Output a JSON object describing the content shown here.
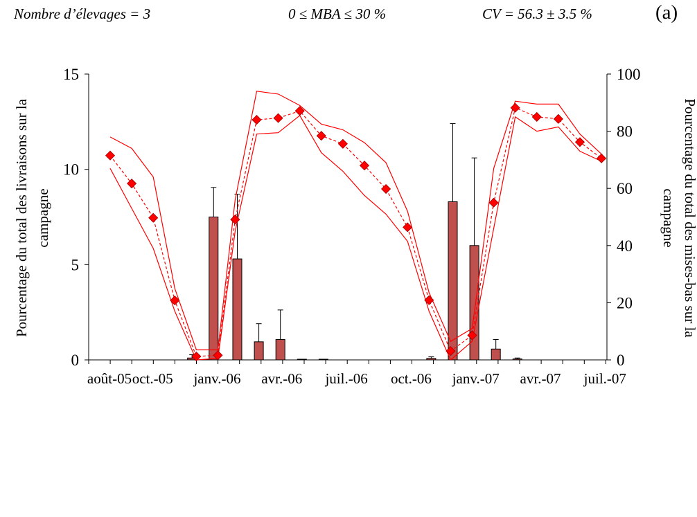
{
  "header": {
    "left": "Nombre d’élevages = 3",
    "center": "0 ≤ MBA ≤ 30 %",
    "right": "CV = 56.3 ± 3.5 %",
    "panel": "(a)"
  },
  "chart_data": {
    "type": "bar",
    "xlabel": "",
    "ylabel_left": "Pourcentage du total des livraisons sur la campagne",
    "ylabel_right": "Pourcentage du total des mises-bas sur la campagne",
    "ylabel_left_lines": [
      "Pourcentage du total des livraisons sur la",
      "campagne"
    ],
    "ylabel_right_lines": [
      "Pourcentage du total des mises-bas sur la",
      "campagne"
    ],
    "ylim_left": [
      0,
      15
    ],
    "ylim_right": [
      0,
      100
    ],
    "yticks_left": [
      "0",
      "5",
      "10",
      "15"
    ],
    "yticks_right": [
      "0",
      "20",
      "40",
      "60",
      "80",
      "100"
    ],
    "month_count": 24,
    "x_tick_labels": [
      "août-05",
      "oct.-05",
      "janv.-06",
      "avr.-06",
      "juil.-06",
      "oct.-06",
      "janv.-07",
      "avr.-07",
      "juil.-07"
    ],
    "x_tick_positions": [
      0,
      2,
      5,
      8,
      11,
      14,
      17,
      20,
      23
    ],
    "grid": false,
    "colors": {
      "bars": "#c0504d",
      "line": "#ff0000",
      "marker": "#ff0000"
    },
    "bar_series": {
      "axis": "left",
      "x": [
        3.8,
        4.8,
        5.9,
        6.9,
        7.9,
        8.9,
        9.9,
        14.9,
        15.9,
        16.9,
        17.9,
        18.9
      ],
      "values": [
        0.1,
        7.5,
        5.3,
        0.95,
        1.07,
        0.02,
        0.0,
        0.08,
        8.3,
        6.0,
        0.57,
        0.05
      ],
      "error": [
        0.17,
        1.55,
        3.4,
        0.95,
        1.55,
        0.0,
        0.0,
        0.08,
        4.1,
        4.6,
        0.5,
        0.05
      ]
    },
    "line_series": {
      "axis": "right",
      "x": [
        0,
        1,
        2,
        3,
        4,
        5,
        5.8,
        6.8,
        7.8,
        8.8,
        9.8,
        10.8,
        11.8,
        12.8,
        13.8,
        14.8,
        15.8,
        16.8,
        17.8,
        18.8,
        19.8,
        20.8,
        21.8,
        22.8
      ],
      "values": [
        71.5,
        61.7,
        49.7,
        20.8,
        1.2,
        1.6,
        49.1,
        84.0,
        84.6,
        87.1,
        78.4,
        75.6,
        68.0,
        59.8,
        46.4,
        20.9,
        3.1,
        8.6,
        55.0,
        88.2,
        85.0,
        84.3,
        76.2,
        70.5
      ],
      "upper": [
        78,
        74,
        64,
        25,
        3.5,
        3.5,
        56,
        94,
        93,
        89,
        82.5,
        80.5,
        76,
        69,
        52,
        23.5,
        6.5,
        11,
        67,
        90.5,
        89.5,
        89.5,
        79,
        72
      ],
      "lower": [
        67,
        53,
        39,
        17,
        0,
        0.5,
        45,
        79,
        79.5,
        85.5,
        72.5,
        66,
        57.5,
        51,
        41.5,
        17,
        0,
        6.5,
        46,
        85,
        80,
        81.5,
        73,
        69.5
      ]
    }
  }
}
